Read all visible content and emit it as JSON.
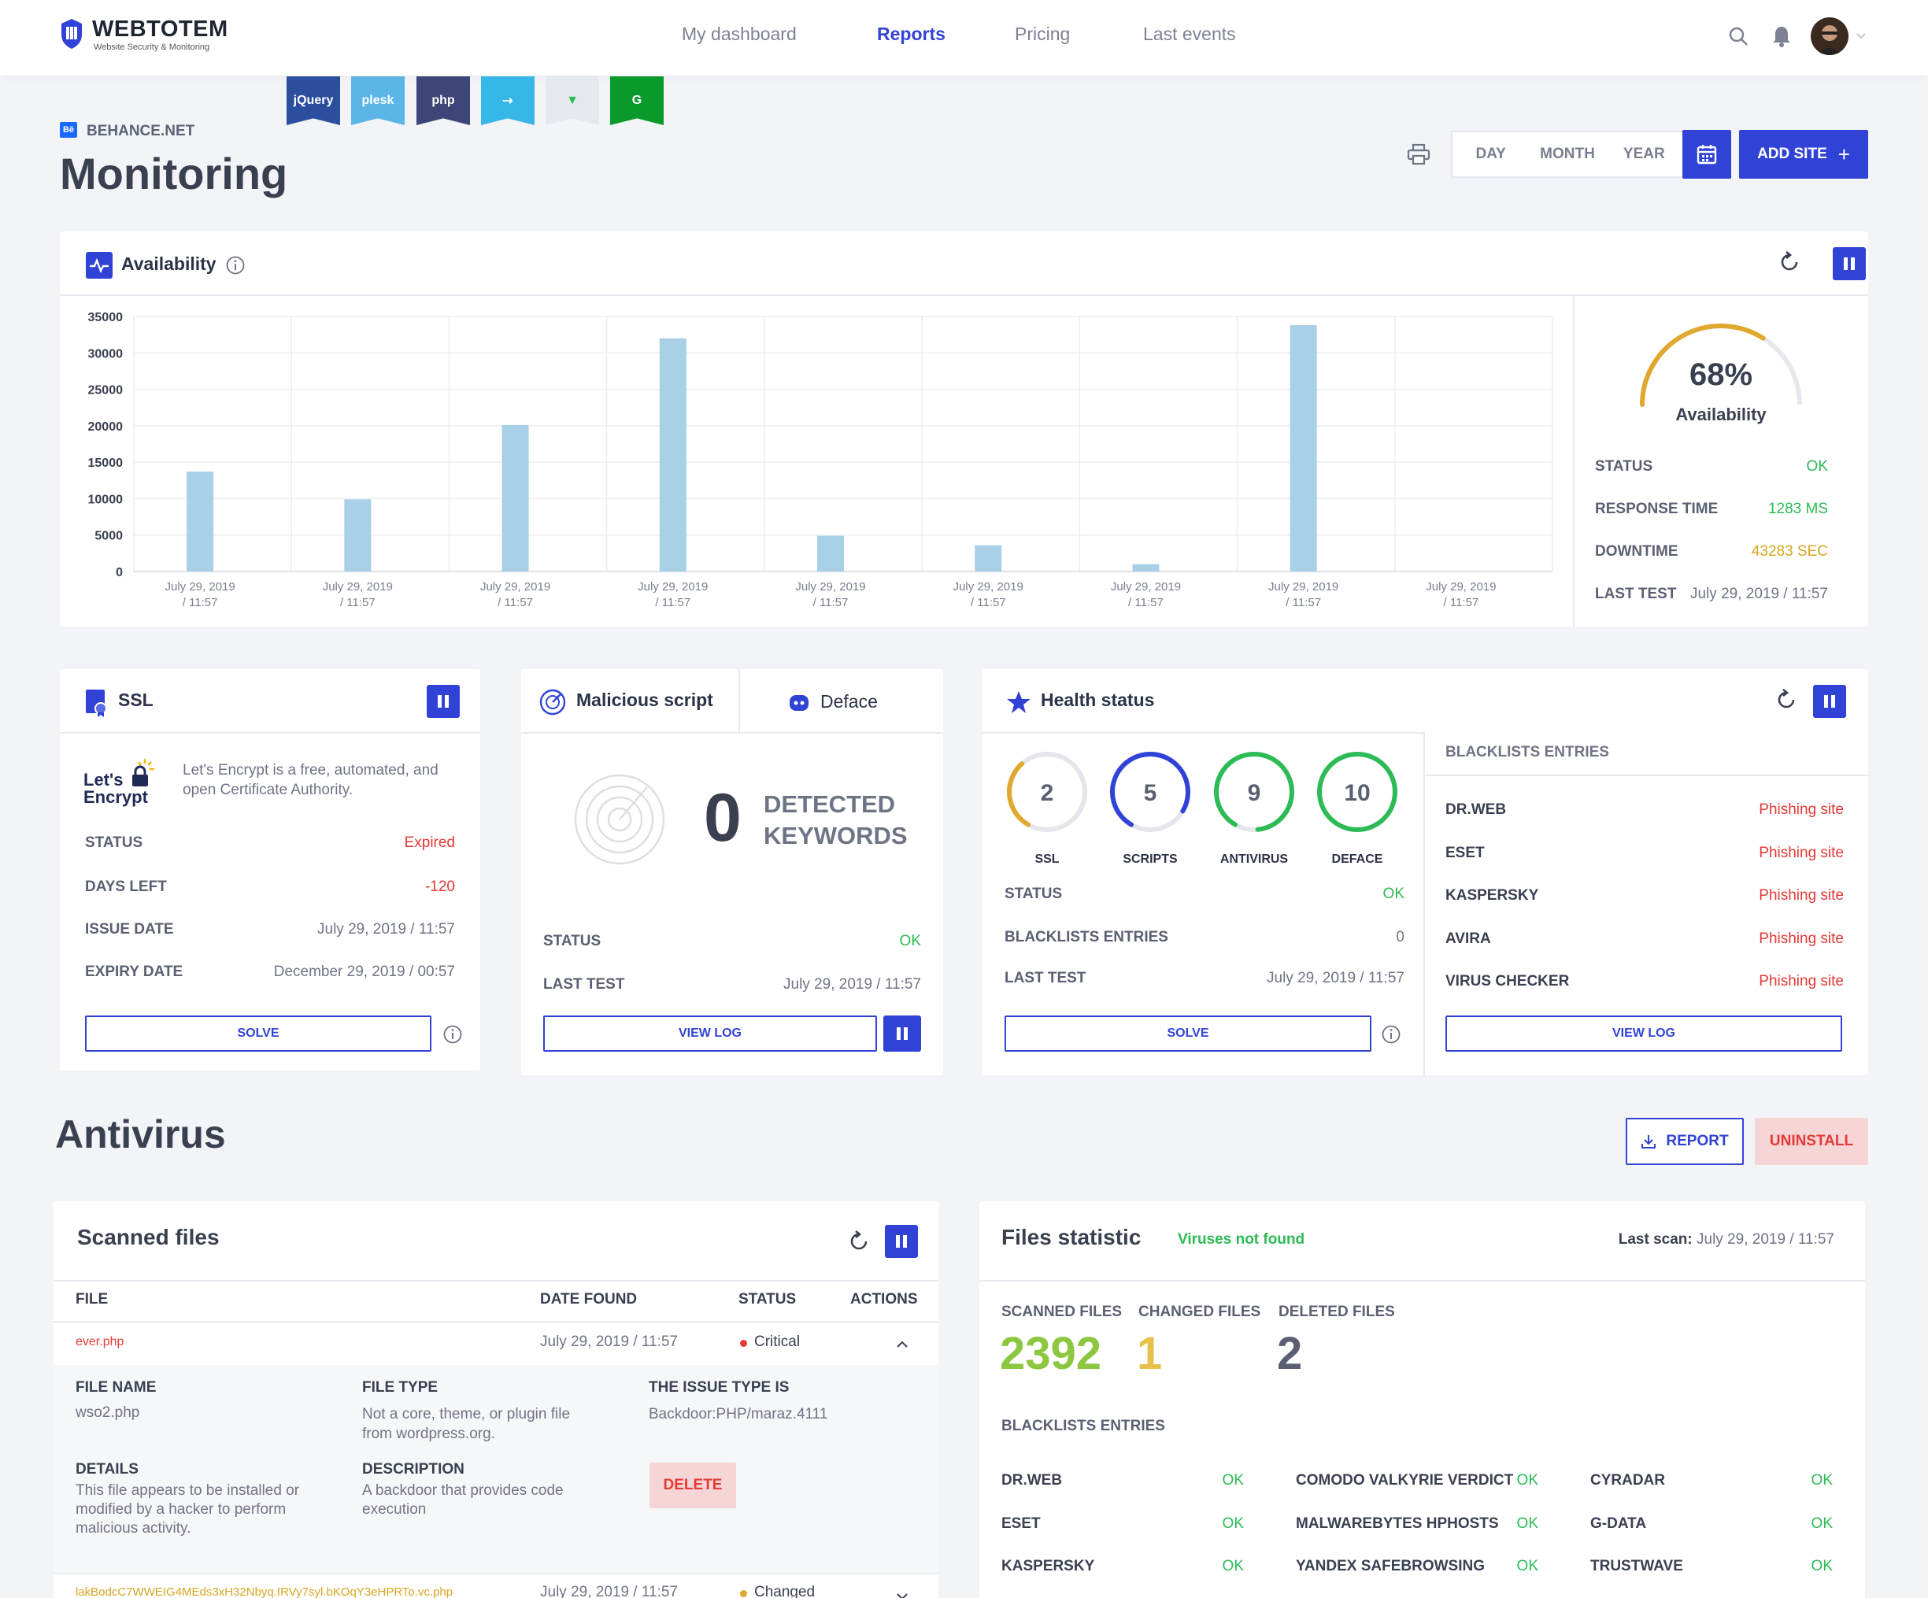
{
  "header": {
    "logo_name": "WEBTOTEM",
    "logo_tag": "Website Security & Monitoring",
    "nav": [
      {
        "label": "My dashboard"
      },
      {
        "label": "Reports"
      },
      {
        "label": "Pricing"
      },
      {
        "label": "Last events"
      }
    ],
    "avatar": "avatar"
  },
  "badges": [
    {
      "label": "jQuery",
      "color": "#2c4e9e"
    },
    {
      "label": "plesk",
      "color": "#5bb6e7"
    },
    {
      "label": "php",
      "color": "#3d4676"
    },
    {
      "label": "⇢",
      "color": "#35b7e8"
    },
    {
      "label": "▼",
      "color": "#e5e8ec"
    },
    {
      "label": "G",
      "color": "#0a9a2b"
    }
  ],
  "page": {
    "site": "BEHANCE.NET",
    "site_icon": "Bē",
    "title": "Monitoring",
    "range": {
      "day": "DAY",
      "month": "MONTH",
      "year": "YEAR"
    },
    "add_site": "ADD SITE"
  },
  "availability": {
    "title": "Availability",
    "gauge_value": "68%",
    "gauge_label": "Availability",
    "rows": [
      {
        "label": "STATUS",
        "value": "OK"
      },
      {
        "label": "RESPONSE TIME",
        "value": "1283 MS"
      },
      {
        "label": "DOWNTIME",
        "value": "43283 SEC"
      },
      {
        "label": "LAST TEST",
        "value": "July 29, 2019 / 11:57"
      }
    ]
  },
  "chart_data": {
    "type": "bar",
    "categories": [
      "July 29, 2019 / 11:57",
      "July 29, 2019 / 11:57",
      "July 29, 2019 / 11:57",
      "July 29, 2019 / 11:57",
      "July 29, 2019 / 11:57",
      "July 29, 2019 / 11:57",
      "July 29, 2019 / 11:57",
      "July 29, 2019 / 11:57",
      "July 29, 2019 / 11:57"
    ],
    "values": [
      13700,
      9900,
      20100,
      32000,
      4900,
      3600,
      1000,
      33800,
      0
    ],
    "yticks": [
      "35000",
      "30000",
      "25000",
      "20000",
      "15000",
      "10000",
      "5000",
      "0"
    ],
    "ylim": [
      0,
      35000
    ],
    "grid": true
  },
  "ssl": {
    "title": "SSL",
    "logo_top": "Let's",
    "logo_bottom": "Encrypt",
    "desc": "Let's Encrypt is a free, automated, and open Certificate Authority.",
    "rows": [
      {
        "label": "STATUS",
        "value": "Expired"
      },
      {
        "label": "DAYS LEFT",
        "value": "-120"
      },
      {
        "label": "ISSUE DATE",
        "value": "July 29, 2019 / 11:57"
      },
      {
        "label": "EXPIRY DATE",
        "value": "December 29, 2019 / 00:57"
      }
    ],
    "solve": "SOLVE"
  },
  "malicious": {
    "tab1": "Malicious script",
    "tab2": "Deface",
    "count": "0",
    "count_label1": "DETECTED",
    "count_label2": "KEYWORDS",
    "rows": [
      {
        "label": "STATUS",
        "value": "OK"
      },
      {
        "label": "LAST TEST",
        "value": "July 29, 2019 / 11:57"
      }
    ],
    "view_log": "VIEW LOG"
  },
  "health": {
    "title": "Health status",
    "rings": [
      {
        "num": "2",
        "label": "SSL",
        "fraction": 0.3,
        "color": "#e0a82e"
      },
      {
        "num": "5",
        "label": "SCRIPTS",
        "fraction": 0.75,
        "color": "#3143d6"
      },
      {
        "num": "9",
        "label": "ANTIVIRUS",
        "fraction": 0.9,
        "color": "#2dbb56"
      },
      {
        "num": "10",
        "label": "DEFACE",
        "fraction": 1.0,
        "color": "#2dbb56"
      }
    ],
    "rows": [
      {
        "label": "STATUS",
        "value": "OK"
      },
      {
        "label": "BLACKLISTS ENTRIES",
        "value": "0"
      },
      {
        "label": "LAST TEST",
        "value": "July 29, 2019 / 11:57"
      }
    ],
    "solve": "SOLVE",
    "bl_title": "BLACKLISTS ENTRIES",
    "blacklists": [
      {
        "name": "DR.WEB",
        "value": "Phishing site"
      },
      {
        "name": "ESET",
        "value": "Phishing site"
      },
      {
        "name": "KASPERSKY",
        "value": "Phishing site"
      },
      {
        "name": "AVIRA",
        "value": "Phishing site"
      },
      {
        "name": "VIRUS CHECKER",
        "value": "Phishing site"
      }
    ],
    "view_log": "VIEW LOG"
  },
  "antivirus": {
    "title": "Antivirus",
    "report": "REPORT",
    "uninstall": "UNINSTALL"
  },
  "scanned": {
    "title": "Scanned files",
    "cols": {
      "file": "FILE",
      "date": "DATE FOUND",
      "status": "STATUS",
      "actions": "ACTIONS"
    },
    "row1": {
      "file": "ever.php",
      "date": "July 29, 2019 / 11:57",
      "status": "Critical"
    },
    "detail": {
      "file_name_l": "FILE NAME",
      "file_name": "wso2.php",
      "file_type_l": "FILE TYPE",
      "file_type": "Not a core, theme, or plugin file from wordpress.org.",
      "issue_l": "THE ISSUE TYPE IS",
      "issue": "Backdoor:PHP/maraz.4111",
      "details_l": "DETAILS",
      "details": "This file appears to be installed or modified by a hacker to perform malicious activity.",
      "desc_l": "DESCRIPTION",
      "desc": "A backdoor that provides code execution",
      "delete": "DELETE"
    },
    "row2": {
      "file": "lakBodcC7WWEIG4MEds3xH32Nbyq.IRVy7syl.bKOqY3eHPRTo.vc.php",
      "date": "July 29, 2019 / 11:57",
      "status": "Changed"
    }
  },
  "filestat": {
    "title": "Files statistic",
    "status": "Viruses not found",
    "last_scan_l": "Last scan:",
    "last_scan": "July 29, 2019 / 11:57",
    "scanned_l": "SCANNED FILES",
    "scanned": "2392",
    "changed_l": "CHANGED FILES",
    "changed": "1",
    "deleted_l": "DELETED FILES",
    "deleted": "2",
    "bl_title": "BLACKLISTS ENTRIES",
    "bl": [
      {
        "name": "DR.WEB",
        "value": "OK"
      },
      {
        "name": "COMODO VALKYRIE VERDICT",
        "value": "OK"
      },
      {
        "name": "CYRADAR",
        "value": "OK"
      },
      {
        "name": "ESET",
        "value": "OK"
      },
      {
        "name": "MALWAREBYTES HPHOSTS",
        "value": "OK"
      },
      {
        "name": "G-DATA",
        "value": "OK"
      },
      {
        "name": "KASPERSKY",
        "value": "OK"
      },
      {
        "name": "YANDEX SAFEBROWSING",
        "value": "OK"
      },
      {
        "name": "TRUSTWAVE",
        "value": "OK"
      }
    ]
  }
}
